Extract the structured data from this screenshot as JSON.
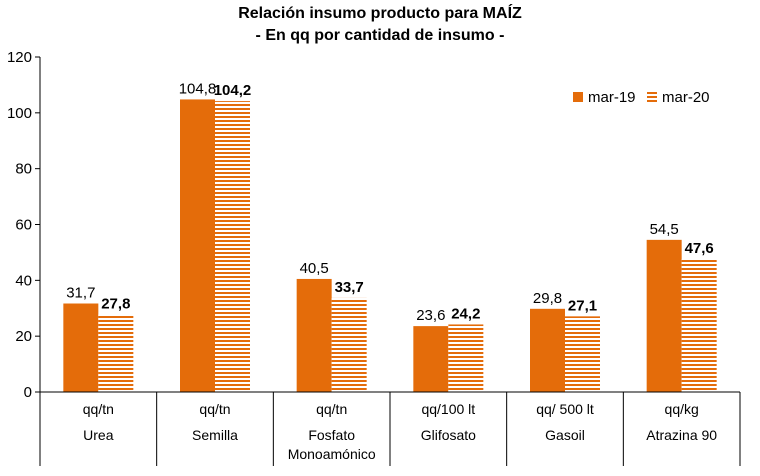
{
  "chart_data": {
    "type": "bar",
    "title": "Relación insumo producto para MAÍZ",
    "subtitle": "- En qq por cantidad de insumo -",
    "categories": [
      {
        "unit": "qq/tn",
        "name": "Urea",
        "name2": ""
      },
      {
        "unit": "qq/tn",
        "name": "Semilla",
        "name2": ""
      },
      {
        "unit": "qq/tn",
        "name": "Fosfato",
        "name2": "Monoamónico"
      },
      {
        "unit": "qq/100 lt",
        "name": "Glifosato",
        "name2": ""
      },
      {
        "unit": "qq/ 500 lt",
        "name": "Gasoil",
        "name2": ""
      },
      {
        "unit": "qq/kg",
        "name": "Atrazina 90",
        "name2": ""
      }
    ],
    "series": [
      {
        "name": "mar-19",
        "values": [
          31.7,
          104.8,
          40.5,
          23.6,
          29.8,
          54.5
        ],
        "labels": [
          "31,7",
          "104,8",
          "40,5",
          "23,6",
          "29,8",
          "54,5"
        ],
        "color": "#E46C0A",
        "pattern": "solid"
      },
      {
        "name": "mar-20",
        "values": [
          27.8,
          104.2,
          33.7,
          24.2,
          27.1,
          47.6
        ],
        "labels": [
          "27,8",
          "104,2",
          "33,7",
          "24,2",
          "27,1",
          "47,6"
        ],
        "color": "#E46C0A",
        "pattern": "horizontal-stripes"
      }
    ],
    "ylim": [
      0,
      120
    ],
    "yticks": [
      0,
      20,
      40,
      60,
      80,
      100,
      120
    ],
    "grid": false,
    "legend": "top-right"
  }
}
